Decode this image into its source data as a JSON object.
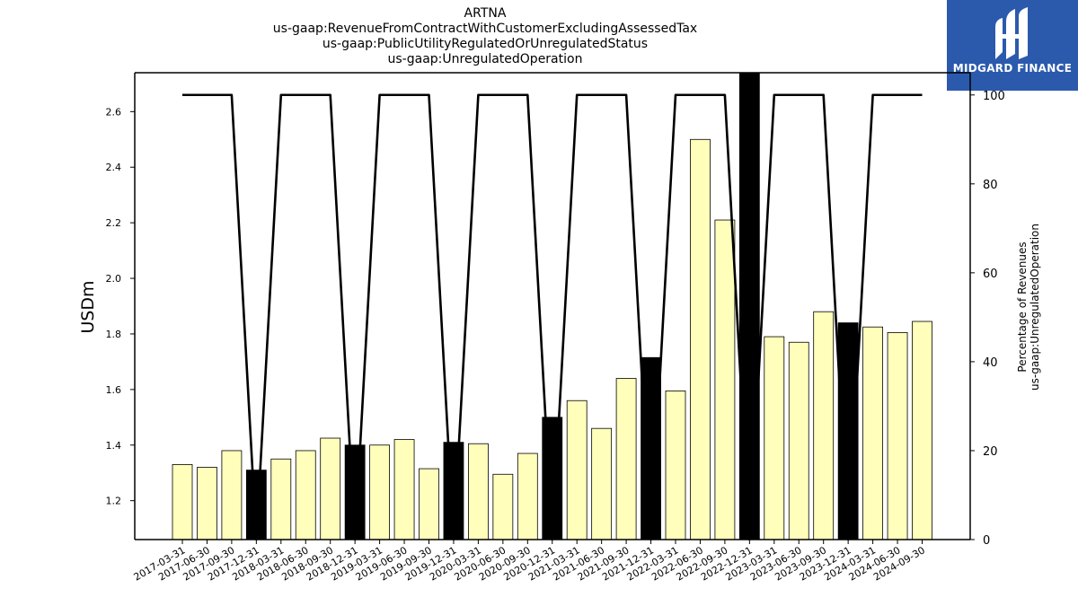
{
  "chart_data": {
    "type": "bar",
    "title_lines": [
      "ARTNA",
      "us-gaap:RevenueFromContractWithCustomerExcludingAssessedTax",
      "us-gaap:PublicUtilityRegulatedOrUnregulatedStatus",
      "us-gaap:UnregulatedOperation"
    ],
    "ylabel": "USDm",
    "y2label_lines": [
      "Percentage of Revenues",
      "us-gaap:UnregulatedOperation"
    ],
    "ylim": [
      1.06,
      2.74
    ],
    "y2lim": [
      0,
      105
    ],
    "yticks": [
      1.2,
      1.4,
      1.6,
      1.8,
      2.0,
      2.2,
      2.4,
      2.6
    ],
    "ytick_labels": [
      "1.2",
      "1.4",
      "1.6",
      "1.8",
      "2.0",
      "2.2",
      "2.4",
      "2.6"
    ],
    "y2ticks": [
      0,
      20,
      40,
      60,
      80,
      100
    ],
    "y2tick_labels": [
      "0",
      "20",
      "40",
      "60",
      "80",
      "100"
    ],
    "categories": [
      "2017-03-31",
      "2017-06-30",
      "2017-09-30",
      "2017-12-31",
      "2018-03-31",
      "2018-06-30",
      "2018-09-30",
      "2018-12-31",
      "2019-03-31",
      "2019-06-30",
      "2019-09-30",
      "2019-12-31",
      "2020-03-31",
      "2020-06-30",
      "2020-09-30",
      "2020-12-31",
      "2021-03-31",
      "2021-06-30",
      "2021-09-30",
      "2021-12-31",
      "2022-03-31",
      "2022-06-30",
      "2022-09-30",
      "2022-12-31",
      "2023-03-31",
      "2023-06-30",
      "2023-09-30",
      "2023-12-31",
      "2024-03-31",
      "2024-06-30",
      "2024-09-30"
    ],
    "values": [
      1.33,
      1.32,
      1.38,
      1.31,
      1.35,
      1.38,
      1.425,
      1.4,
      1.4,
      1.42,
      1.315,
      1.41,
      1.405,
      1.295,
      1.37,
      1.5,
      1.56,
      1.46,
      1.64,
      1.715,
      1.595,
      2.5,
      2.21,
      2.74,
      1.79,
      1.77,
      1.88,
      1.84,
      1.825,
      1.805,
      1.845
    ],
    "annual": [
      false,
      false,
      false,
      true,
      false,
      false,
      false,
      true,
      false,
      false,
      false,
      true,
      false,
      false,
      false,
      true,
      false,
      false,
      false,
      true,
      false,
      false,
      false,
      true,
      false,
      false,
      false,
      true,
      false,
      false,
      false
    ],
    "percentage_series": [
      100,
      100,
      100,
      0,
      100,
      100,
      100,
      0,
      100,
      100,
      100,
      0,
      100,
      100,
      100,
      0,
      100,
      100,
      100,
      0,
      100,
      100,
      100,
      0,
      100,
      100,
      100,
      0,
      100,
      100,
      100
    ],
    "colors": {
      "quarter_bar": "#ffffbb",
      "annual_bar": "#000000",
      "line": "#000000"
    }
  },
  "logo": {
    "text": "MIDGARD FINANCE"
  }
}
